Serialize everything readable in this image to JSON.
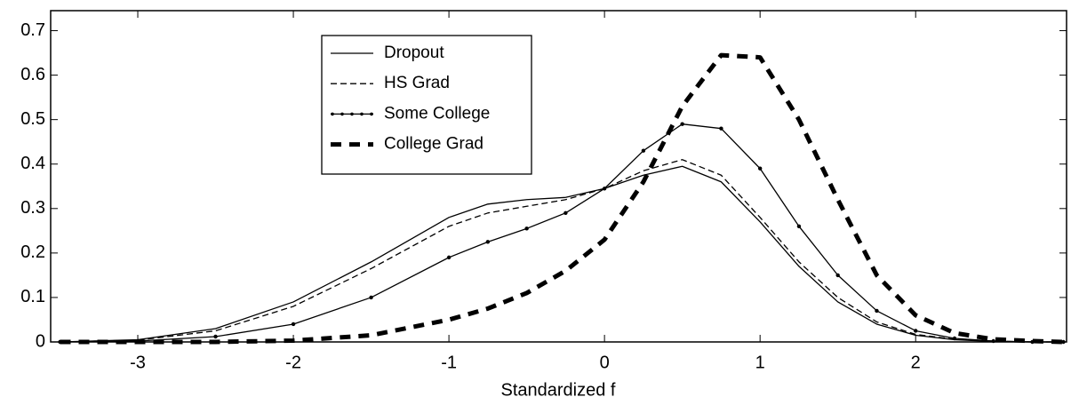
{
  "chart_data": {
    "type": "line",
    "xlabel": "Standardized f",
    "x": [
      -3.5,
      -3,
      -2.5,
      -2,
      -1.5,
      -1,
      -0.75,
      -0.5,
      -0.25,
      0,
      0.25,
      0.5,
      0.75,
      1,
      1.25,
      1.5,
      1.75,
      2,
      2.25,
      2.5,
      2.75,
      2.95
    ],
    "series": [
      {
        "name": "Dropout",
        "color": "#000000",
        "line_style": "solid",
        "values": [
          0,
          0.005,
          0.03,
          0.09,
          0.18,
          0.28,
          0.31,
          0.32,
          0.325,
          0.345,
          0.375,
          0.395,
          0.36,
          0.27,
          0.17,
          0.09,
          0.04,
          0.015,
          0.005,
          0.001,
          0,
          0
        ]
      },
      {
        "name": "HS Grad",
        "color": "#000000",
        "line_style": "dashed",
        "values": [
          0,
          0.004,
          0.025,
          0.08,
          0.165,
          0.26,
          0.29,
          0.305,
          0.32,
          0.345,
          0.385,
          0.41,
          0.375,
          0.28,
          0.18,
          0.1,
          0.045,
          0.017,
          0.006,
          0.002,
          0,
          0
        ]
      },
      {
        "name": "Some College",
        "color": "#000000",
        "line_style": "solid-dotted",
        "values": [
          0,
          0.002,
          0.012,
          0.04,
          0.1,
          0.19,
          0.225,
          0.255,
          0.29,
          0.345,
          0.43,
          0.49,
          0.48,
          0.39,
          0.26,
          0.15,
          0.07,
          0.025,
          0.008,
          0.002,
          0,
          0
        ]
      },
      {
        "name": "College Grad",
        "color": "#000000",
        "line_style": "thick-dashed",
        "values": [
          0,
          0,
          0,
          0.003,
          0.015,
          0.05,
          0.075,
          0.11,
          0.16,
          0.23,
          0.36,
          0.53,
          0.645,
          0.64,
          0.5,
          0.32,
          0.15,
          0.06,
          0.02,
          0.006,
          0.002,
          0
        ]
      }
    ],
    "xlim": [
      -3.56,
      2.97
    ],
    "xticks": [
      -3,
      -2,
      -1,
      0,
      1,
      2
    ],
    "ylim": [
      0,
      0.745
    ],
    "yticks": [
      0,
      0.1,
      0.2,
      0.3,
      0.4,
      0.5,
      0.6,
      0.7
    ],
    "grid": false,
    "legend": "upper-left"
  }
}
